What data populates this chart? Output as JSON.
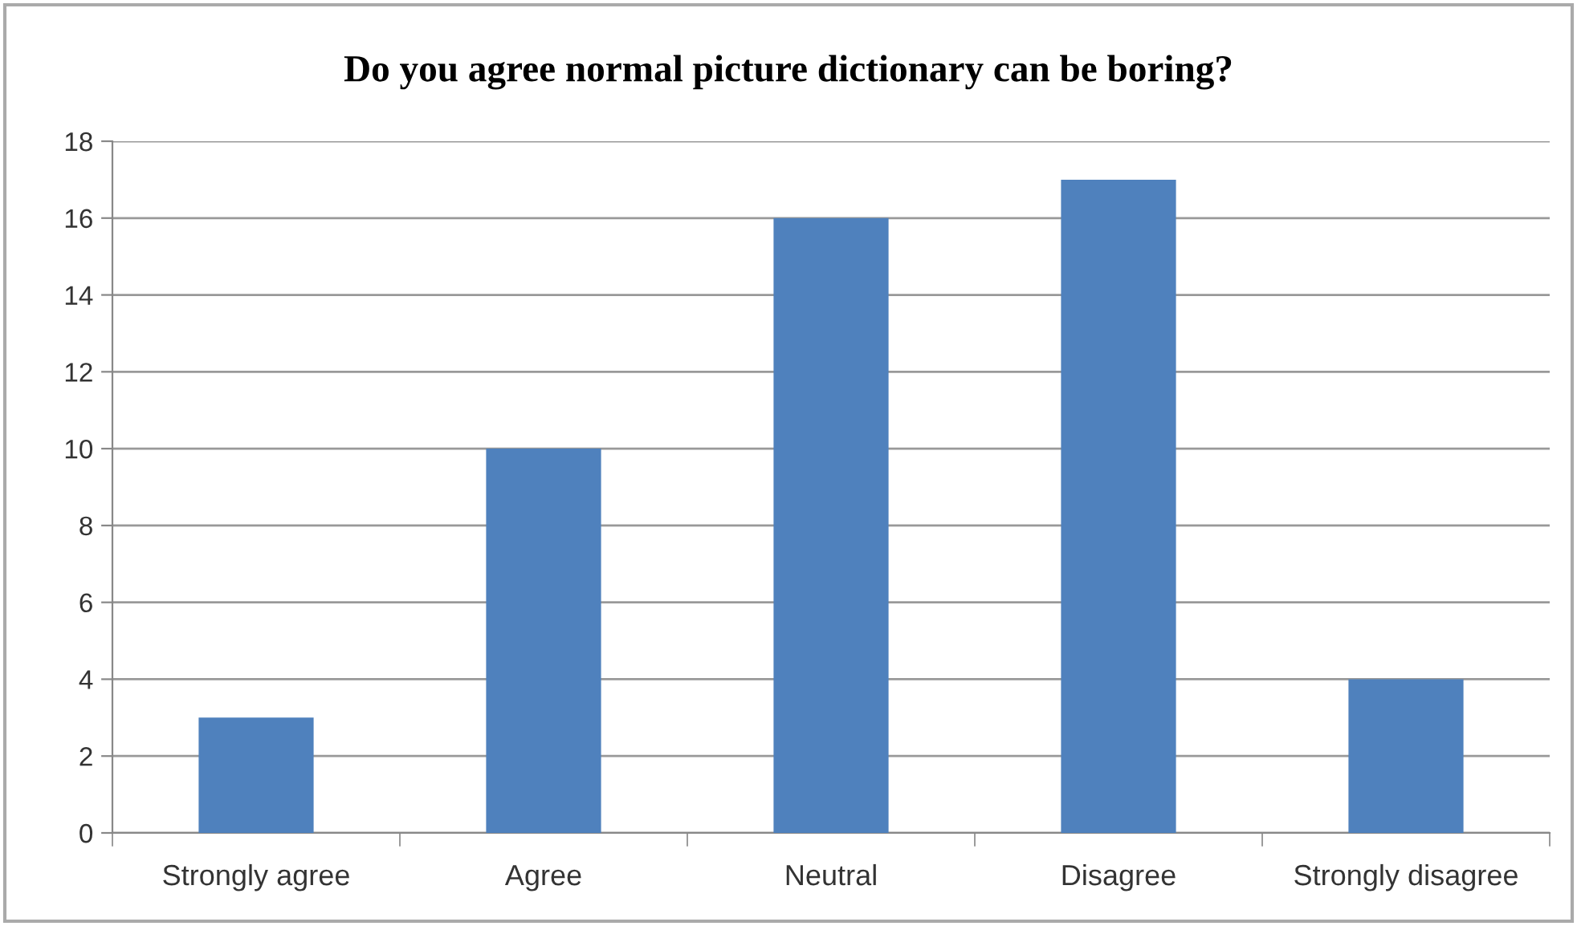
{
  "chart_data": {
    "type": "bar",
    "title": "Do you agree normal picture dictionary can be boring?",
    "categories": [
      "Strongly agree",
      "Agree",
      "Neutral",
      "Disagree",
      "Strongly disagree"
    ],
    "values": [
      3,
      10,
      16,
      17,
      4
    ],
    "color": "#4f81bd",
    "ylim": [
      0,
      18
    ],
    "yticks": [
      0,
      2,
      4,
      6,
      8,
      10,
      12,
      14,
      16,
      18
    ],
    "grid": "y",
    "legend": false
  }
}
